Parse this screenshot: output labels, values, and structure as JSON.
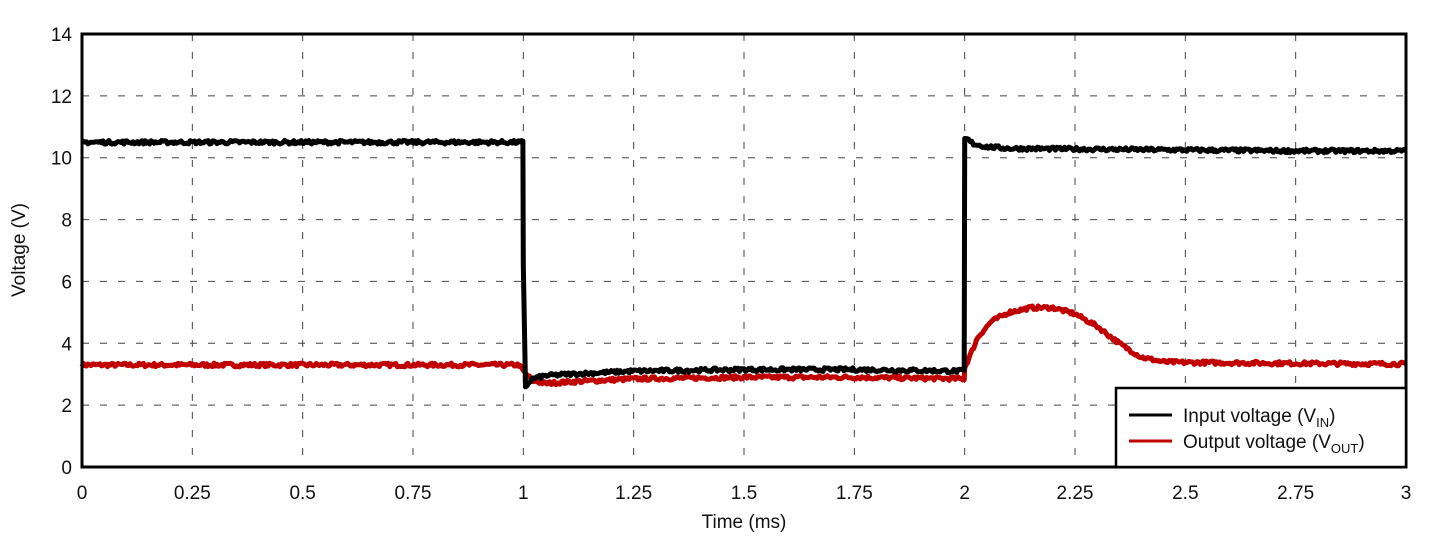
{
  "chart_data": {
    "type": "line",
    "title": "",
    "xlabel": "Time (ms)",
    "ylabel": "Voltage (V)",
    "xlim": [
      0,
      3
    ],
    "ylim": [
      0,
      14
    ],
    "xticks": [
      "0",
      "0.25",
      "0.5",
      "0.75",
      "1",
      "1.25",
      "1.5",
      "1.75",
      "2",
      "2.25",
      "2.5",
      "2.75",
      "3"
    ],
    "yticks": [
      "0",
      "2",
      "4",
      "6",
      "8",
      "10",
      "12",
      "14"
    ],
    "grid": true,
    "legend_position": "lower right",
    "series": [
      {
        "name": "Input voltage (VIN)",
        "label_main": "Input voltage (V",
        "label_sub": "IN",
        "label_end": ")",
        "color": "#000000",
        "x": [
          0,
          0.5,
          0.999,
          1.0,
          1.005,
          1.02,
          1.05,
          1.1,
          1.25,
          1.5,
          1.75,
          1.999,
          2.0,
          2.005,
          2.02,
          2.05,
          2.1,
          2.25,
          2.5,
          2.75,
          3.0
        ],
        "y": [
          10.5,
          10.5,
          10.5,
          6.5,
          2.6,
          2.85,
          2.95,
          3.0,
          3.1,
          3.15,
          3.15,
          3.1,
          10.6,
          10.6,
          10.45,
          10.35,
          10.3,
          10.28,
          10.25,
          10.22,
          10.22
        ]
      },
      {
        "name": "Output voltage (VOUT)",
        "label_main": "Output voltage (V",
        "label_sub": "OUT",
        "label_end": ")",
        "color": "#c00000",
        "x": [
          0,
          0.5,
          0.99,
          1.0,
          1.02,
          1.05,
          1.1,
          1.25,
          1.5,
          1.75,
          1.999,
          2.0,
          2.03,
          2.06,
          2.1,
          2.15,
          2.2,
          2.25,
          2.3,
          2.35,
          2.4,
          2.45,
          2.5,
          2.75,
          3.0
        ],
        "y": [
          3.3,
          3.3,
          3.3,
          3.1,
          2.8,
          2.7,
          2.75,
          2.85,
          2.9,
          2.9,
          2.85,
          3.2,
          4.2,
          4.7,
          5.0,
          5.15,
          5.15,
          4.95,
          4.55,
          4.0,
          3.55,
          3.4,
          3.38,
          3.35,
          3.33
        ]
      }
    ]
  }
}
